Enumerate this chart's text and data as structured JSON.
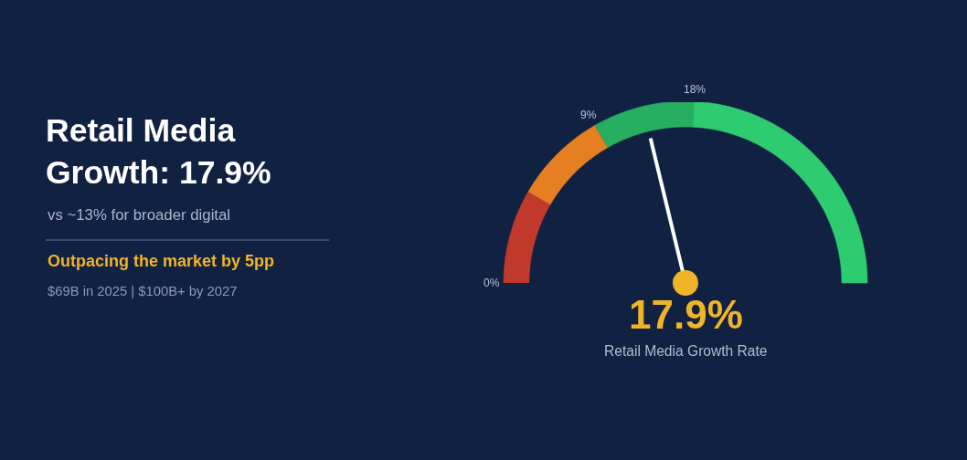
{
  "chart_data": {
    "type": "donut",
    "title": "Retail Media Growth: 17.9%",
    "subtitle": "vs ~13% for broader digital",
    "categories": [
      "0%",
      null,
      "9%",
      "18%"
    ],
    "values": [
      16.7,
      16.7,
      18.1,
      48.5
    ],
    "colors": [
      "#c0392b",
      "#e67e22",
      "#27ae60",
      "#2ecc71"
    ],
    "needle": "9%",
    "annotations": [
      "Outpacing the market by 5pp",
      "$69B in 2025 | $100B+ by 2027",
      "17.9%",
      "Retail Media Growth Rate"
    ]
  }
}
